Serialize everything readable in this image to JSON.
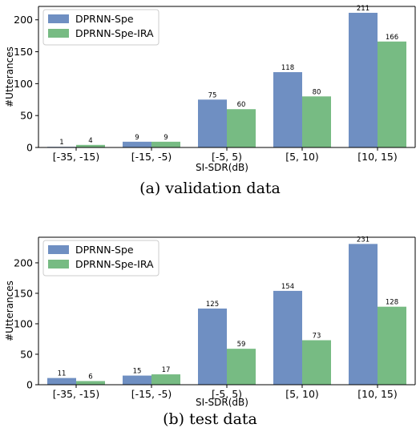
{
  "chart_data": [
    {
      "type": "bar",
      "caption": "(a)  validation data",
      "categories": [
        "[-35, -15)",
        "[-15, -5)",
        "[-5, 5)",
        "[5, 10)",
        "[10, 15)"
      ],
      "series": [
        {
          "name": "DPRNN-Spe",
          "color": "#6f8fc2",
          "values": [
            1,
            9,
            75,
            118,
            211
          ]
        },
        {
          "name": "DPRNN-Spe-IRA",
          "color": "#77bb83",
          "values": [
            4,
            9,
            60,
            80,
            166
          ]
        }
      ],
      "xlabel": "SI-SDR(dB)",
      "ylabel": "#Utterances",
      "ylim": [
        0,
        221
      ],
      "yticks": [
        0,
        50,
        100,
        150,
        200
      ],
      "legend": "top-left",
      "grid": false
    },
    {
      "type": "bar",
      "caption": "(b)  test data",
      "categories": [
        "[-35, -15)",
        "[-15, -5)",
        "[-5, 5)",
        "[5, 10)",
        "[10, 15)"
      ],
      "series": [
        {
          "name": "DPRNN-Spe",
          "color": "#6f8fc2",
          "values": [
            11,
            15,
            125,
            154,
            231
          ]
        },
        {
          "name": "DPRNN-Spe-IRA",
          "color": "#77bb83",
          "values": [
            6,
            17,
            59,
            73,
            128
          ]
        }
      ],
      "xlabel": "SI-SDR(dB)",
      "ylabel": "#Utterances",
      "ylim": [
        0,
        242
      ],
      "yticks": [
        0,
        50,
        100,
        150,
        200
      ],
      "legend": "top-left",
      "grid": false
    }
  ]
}
